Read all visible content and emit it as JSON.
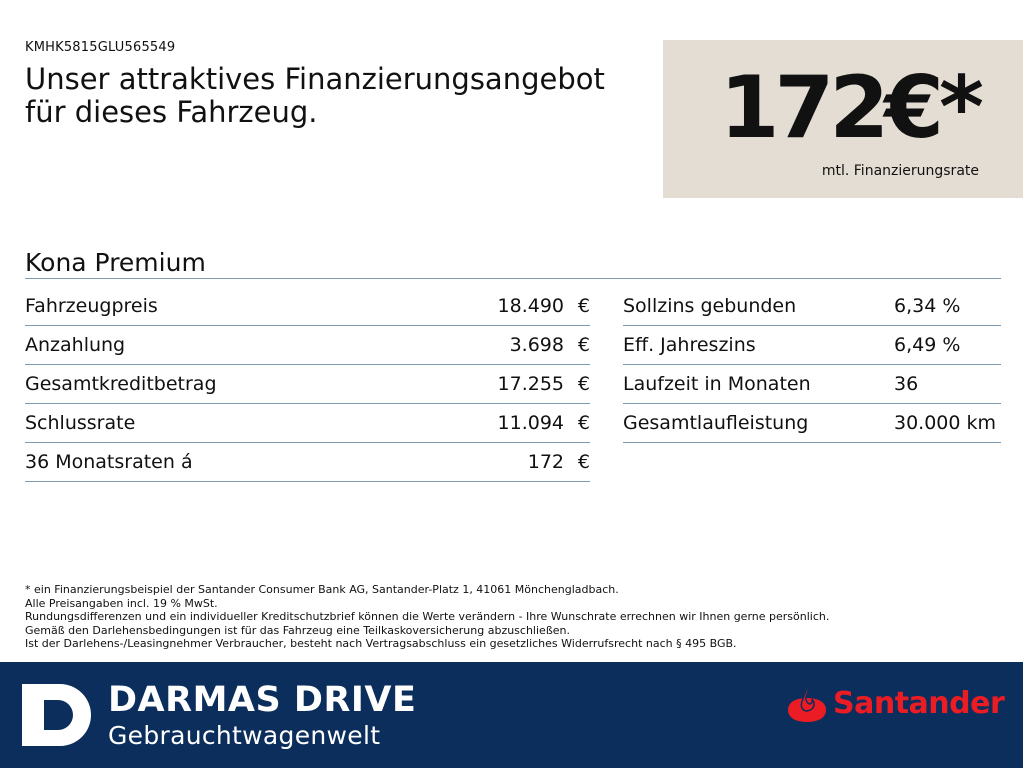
{
  "header": {
    "vin": "KMHK5815GLU565549",
    "headline_line1": "Unser attraktives Finanzierungsangebot",
    "headline_line2": "für dieses Fahrzeug."
  },
  "price_box": {
    "amount": "172€*",
    "caption": "mtl. Finanzierungsrate"
  },
  "model": "Kona Premium",
  "left_table": [
    {
      "label": "Fahrzeugpreis",
      "value": "18.490",
      "currency": "€"
    },
    {
      "label": "Anzahlung",
      "value": "3.698",
      "currency": "€"
    },
    {
      "label": "Gesamtkreditbetrag",
      "value": "17.255",
      "currency": "€"
    },
    {
      "label": "Schlussrate",
      "value": "11.094",
      "currency": "€"
    },
    {
      "label": "36 Monatsraten á",
      "value": "172",
      "currency": "€"
    }
  ],
  "right_table": [
    {
      "label": "Sollzins gebunden",
      "value": "6,34 %"
    },
    {
      "label": "Eff. Jahreszins",
      "value": "6,49 %"
    },
    {
      "label": "Laufzeit in Monaten",
      "value": "36"
    },
    {
      "label": "Gesamtlaufleistung",
      "value": "30.000 km"
    }
  ],
  "footnotes": [
    "* ein Finanzierungsbeispiel der Santander Consumer Bank AG, Santander-Platz 1, 41061 Mönchengladbach.",
    "Alle Preisangaben incl. 19 % MwSt.",
    "Rundungsdifferenzen und ein individueller Kreditschutzbrief können die Werte verändern - Ihre Wunschrate errechnen wir Ihnen gerne persönlich.",
    "Gemäß den Darlehensbedingungen ist für das Fahrzeug eine Teilkaskoversicherung abzuschließen.",
    "Ist der Darlehens-/Leasingnehmer Verbraucher, besteht nach Vertragsabschluss ein gesetzliches Widerrufsrecht nach § 495 BGB."
  ],
  "footer": {
    "brand_title": "DARMAS DRIVE",
    "brand_subtitle": "Gebrauchtwagenwelt",
    "bank_name": "Santander",
    "colors": {
      "footer_bg": "#0c2e5c",
      "bank_red": "#ec1c24",
      "price_box_bg": "#e4ddd3"
    }
  }
}
